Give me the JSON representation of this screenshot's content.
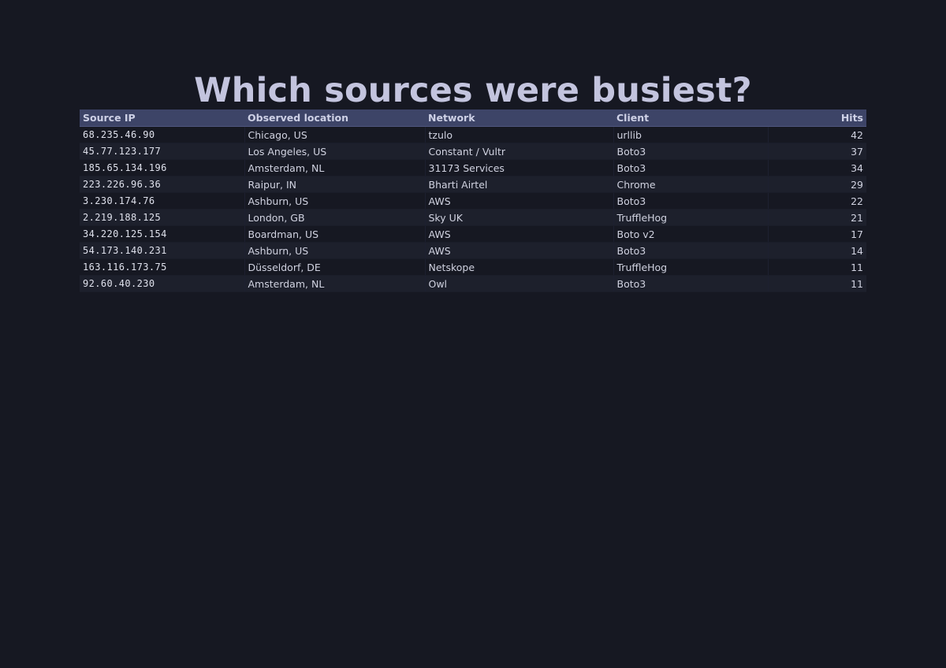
{
  "title": "Which sources were busiest?",
  "table": {
    "headers": {
      "ip": "Source IP",
      "location": "Observed location",
      "network": "Network",
      "client": "Client",
      "hits": "Hits"
    },
    "rows": [
      {
        "ip": "68.235.46.90",
        "location": "Chicago, US",
        "network": "tzulo",
        "client": "urllib",
        "hits": "42"
      },
      {
        "ip": "45.77.123.177",
        "location": "Los Angeles, US",
        "network": "Constant / Vultr",
        "client": "Boto3",
        "hits": "37"
      },
      {
        "ip": "185.65.134.196",
        "location": "Amsterdam, NL",
        "network": "31173 Services",
        "client": "Boto3",
        "hits": "34"
      },
      {
        "ip": "223.226.96.36",
        "location": "Raipur, IN",
        "network": "Bharti Airtel",
        "client": "Chrome",
        "hits": "29"
      },
      {
        "ip": "3.230.174.76",
        "location": "Ashburn, US",
        "network": "AWS",
        "client": "Boto3",
        "hits": "22"
      },
      {
        "ip": "2.219.188.125",
        "location": "London, GB",
        "network": "Sky UK",
        "client": "TruffleHog",
        "hits": "21"
      },
      {
        "ip": "34.220.125.154",
        "location": "Boardman, US",
        "network": "AWS",
        "client": "Boto v2",
        "hits": "17"
      },
      {
        "ip": "54.173.140.231",
        "location": "Ashburn, US",
        "network": "AWS",
        "client": "Boto3",
        "hits": "14"
      },
      {
        "ip": "163.116.173.75",
        "location": "Düsseldorf, DE",
        "network": "Netskope",
        "client": "TruffleHog",
        "hits": "11"
      },
      {
        "ip": "92.60.40.230",
        "location": "Amsterdam, NL",
        "network": "Owl",
        "client": "Boto3",
        "hits": "11"
      }
    ]
  },
  "colors": {
    "background": "#161822",
    "title": "#c3c4de",
    "header_background": "#3d4467",
    "row_alt_background": "#1d202c"
  }
}
